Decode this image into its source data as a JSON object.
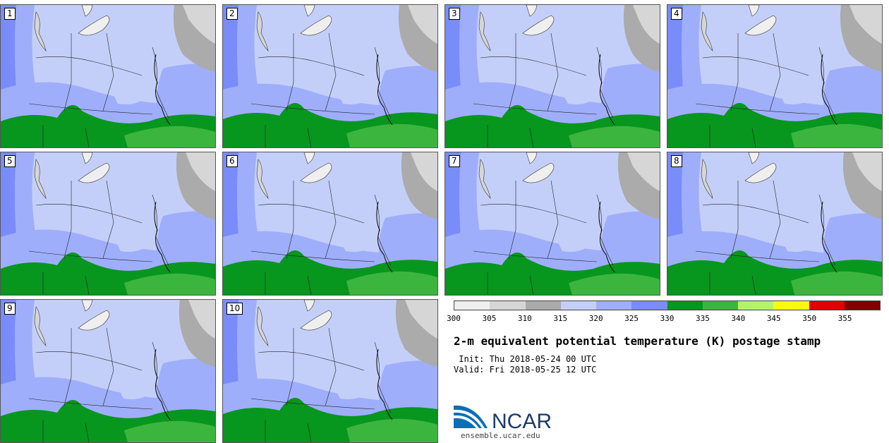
{
  "panels": [
    {
      "label": "1"
    },
    {
      "label": "2"
    },
    {
      "label": "3"
    },
    {
      "label": "4"
    },
    {
      "label": "5"
    },
    {
      "label": "6"
    },
    {
      "label": "7"
    },
    {
      "label": "8"
    },
    {
      "label": "9"
    },
    {
      "label": "10"
    }
  ],
  "colorbar": {
    "colors": [
      "#efefef",
      "#d6d6d6",
      "#ababab",
      "#c4cff9",
      "#9faefa",
      "#7a8cfa",
      "#07961e",
      "#3cb53e",
      "#b4f26e",
      "#fafa11",
      "#e10000",
      "#7e0000"
    ],
    "ticks": [
      "300",
      "305",
      "310",
      "315",
      "320",
      "325",
      "330",
      "335",
      "340",
      "345",
      "350",
      "355"
    ]
  },
  "title": "2-m equivalent potential temperature (K) postage stamp",
  "init": " Init: Thu 2018-05-24 00 UTC",
  "valid": "Valid: Fri 2018-05-25 12 UTC",
  "logo_text": "NCAR",
  "url": "ensemble.ucar.edu",
  "map_colors": {
    "light_blue": "#c4cff9",
    "mid_blue": "#9faefa",
    "dark_blue": "#7a8cfa",
    "dark_green": "#07961e",
    "light_green": "#3cb53e",
    "gray": "#ababab",
    "light_gray": "#d6d6d6",
    "white": "#efefef"
  }
}
